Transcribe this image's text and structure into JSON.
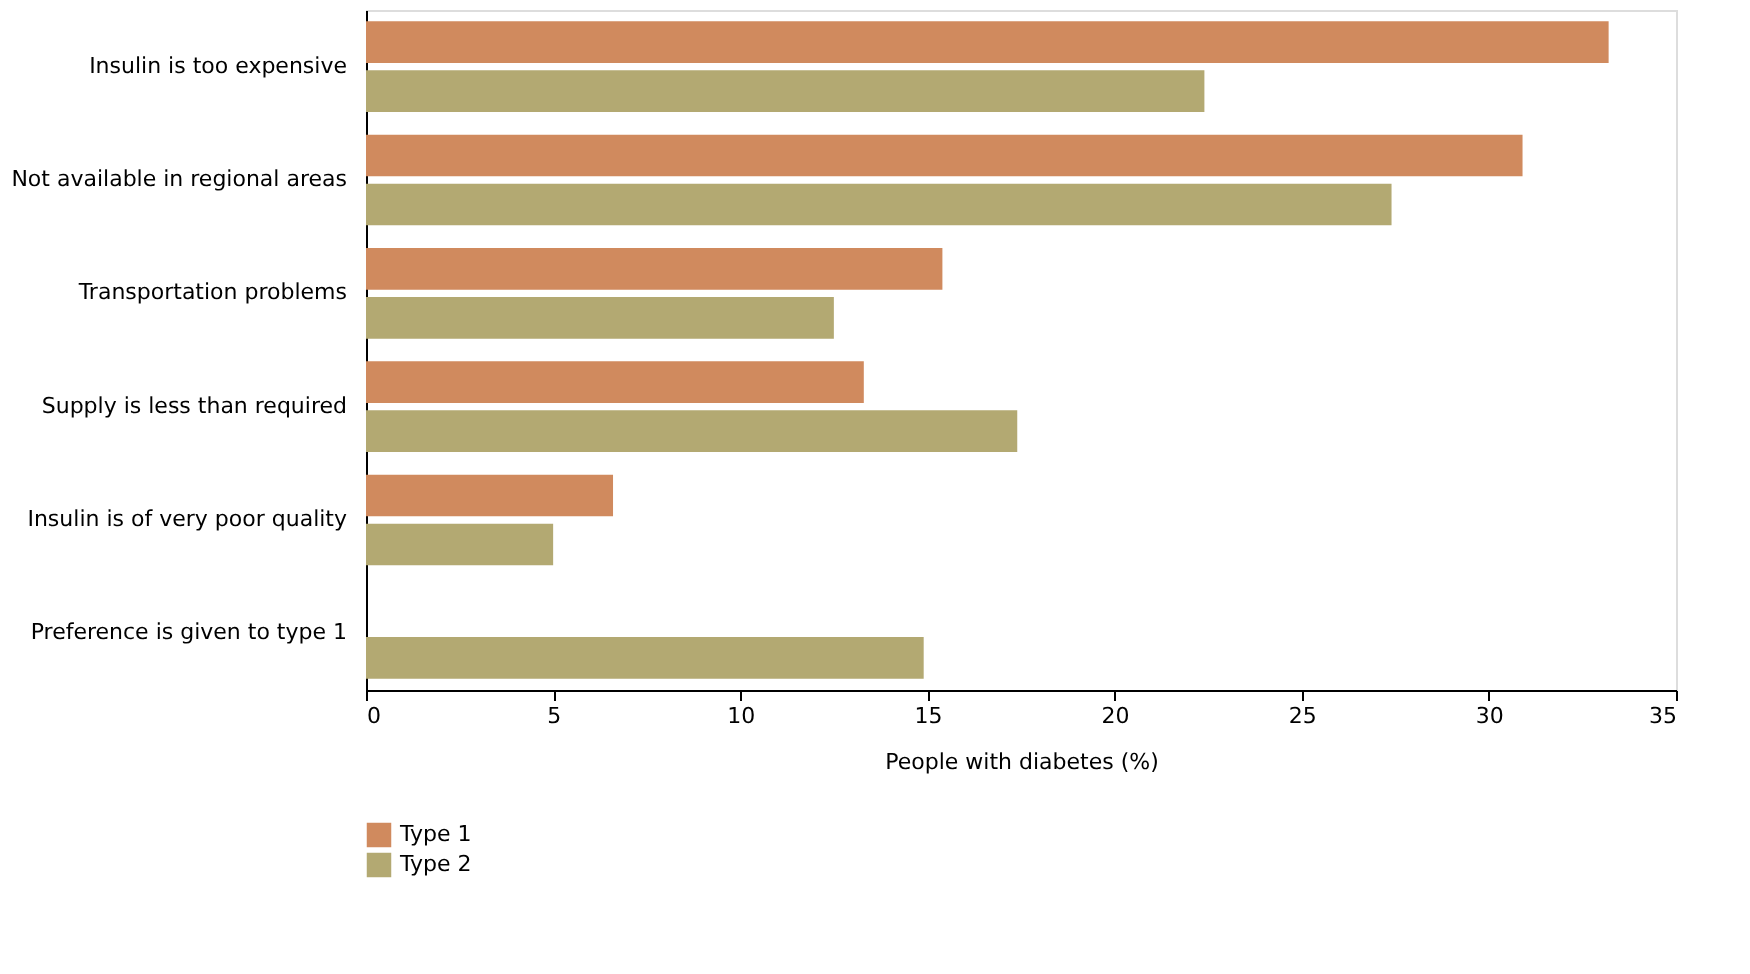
{
  "chart_data": {
    "type": "bar",
    "orientation": "horizontal",
    "xlabel": "People with diabetes (%)",
    "categories": [
      "Insulin is too expensive",
      "Not available in regional areas",
      "Transportation problems",
      "Supply is less than required",
      "Insulin is of very poor quality",
      "Preference is given to type 1"
    ],
    "series": [
      {
        "name": "Type 1",
        "color": "#d08a5e",
        "values": [
          33.2,
          30.9,
          15.4,
          13.3,
          6.6,
          0
        ]
      },
      {
        "name": "Type 2",
        "color": "#b3a972",
        "values": [
          22.4,
          27.4,
          12.5,
          17.4,
          5.0,
          14.9
        ]
      }
    ],
    "xlim": [
      0,
      35
    ],
    "xticks": [
      0,
      5,
      10,
      15,
      20,
      25,
      30,
      35
    ],
    "grid": false,
    "legend": "bottom left"
  }
}
